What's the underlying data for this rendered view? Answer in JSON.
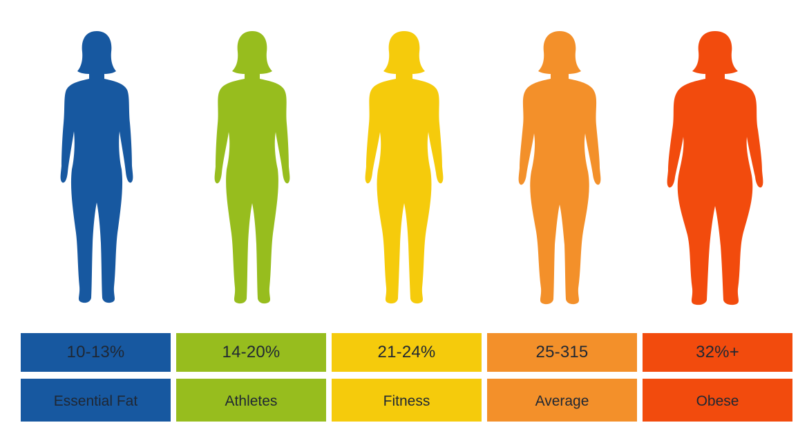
{
  "categories": [
    {
      "range": "10-13%",
      "label": "Essential Fat",
      "color": "#1758a0"
    },
    {
      "range": "14-20%",
      "label": "Athletes",
      "color": "#97bd1e"
    },
    {
      "range": "21-24%",
      "label": "Fitness",
      "color": "#f5cb0c"
    },
    {
      "range": "25-315",
      "label": "Average",
      "color": "#f3902a"
    },
    {
      "range": "32%+",
      "label": "Obese",
      "color": "#f24b0d"
    }
  ]
}
